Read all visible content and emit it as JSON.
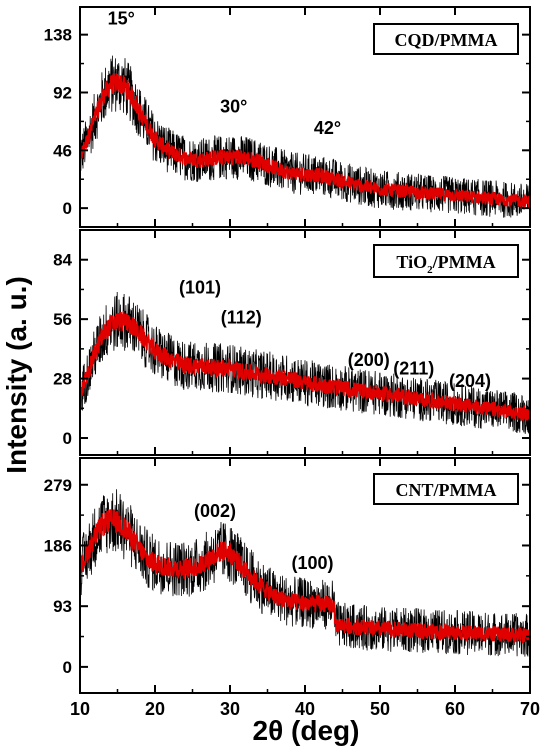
{
  "chart_data": [
    {
      "type": "line",
      "label": "CQD/PMMA",
      "ylim": [
        -15,
        160
      ],
      "yticks": [
        0,
        46,
        92,
        138
      ],
      "series": [
        {
          "name": "CQD/PMMA",
          "color": "#e00000",
          "noise_color": "#000000",
          "x": [
            10,
            11,
            12,
            13,
            14,
            15,
            16,
            17,
            18,
            19,
            20,
            22,
            24,
            26,
            28,
            30,
            32,
            34,
            36,
            38,
            40,
            42,
            44,
            46,
            48,
            50,
            52,
            54,
            56,
            58,
            60,
            62,
            64,
            66,
            68,
            70
          ],
          "y": [
            40,
            55,
            72,
            88,
            98,
            100,
            97,
            88,
            76,
            65,
            55,
            45,
            40,
            38,
            40,
            41,
            40,
            37,
            32,
            28,
            27,
            26,
            23,
            20,
            17,
            15,
            14,
            13,
            12,
            11,
            10,
            9,
            8,
            7,
            6,
            5
          ]
        }
      ],
      "annotations": [
        {
          "text": "15°",
          "x": 15.5,
          "y": 146
        },
        {
          "text": "30°",
          "x": 30.5,
          "y": 76
        },
        {
          "text": "42°",
          "x": 43,
          "y": 59
        }
      ]
    },
    {
      "type": "line",
      "label": "TiO2/PMMA",
      "ylim": [
        -8,
        98
      ],
      "yticks": [
        0,
        28,
        56,
        84
      ],
      "series": [
        {
          "name": "TiO2/PMMA",
          "color": "#e00000",
          "noise_color": "#000000",
          "x": [
            10,
            11,
            12,
            13,
            14,
            15,
            16,
            17,
            18,
            19,
            20,
            22,
            24,
            26,
            28,
            30,
            32,
            34,
            36,
            38,
            40,
            42,
            44,
            46,
            48,
            50,
            52,
            54,
            56,
            58,
            60,
            62,
            64,
            66,
            68,
            70
          ],
          "y": [
            20,
            30,
            40,
            48,
            53,
            55,
            55,
            53,
            49,
            45,
            41,
            37,
            34,
            34,
            33,
            33,
            31,
            30,
            29,
            28,
            26,
            25,
            24,
            23,
            22,
            21,
            20,
            19,
            18,
            17,
            16,
            15,
            14,
            13,
            12,
            11
          ]
        }
      ],
      "annotations": [
        {
          "text": "(101)",
          "x": 26,
          "y": 68
        },
        {
          "text": "(112)",
          "x": 31.5,
          "y": 54
        },
        {
          "text": "(200)",
          "x": 48.5,
          "y": 34
        },
        {
          "text": "(211)",
          "x": 54.5,
          "y": 30
        },
        {
          "text": "(204)",
          "x": 62,
          "y": 24
        }
      ]
    },
    {
      "type": "line",
      "label": "CNT/PMMA",
      "ylim": [
        -40,
        320
      ],
      "yticks": [
        0,
        93,
        186,
        279
      ],
      "series": [
        {
          "name": "CNT/PMMA",
          "color": "#e00000",
          "noise_color": "#000000",
          "x": [
            10,
            11,
            12,
            13,
            14,
            15,
            16,
            17,
            18,
            19,
            20,
            22,
            24,
            26,
            28,
            29,
            30,
            31,
            32,
            34,
            36,
            38,
            40,
            42,
            43.9,
            44,
            46,
            48,
            50,
            52,
            54,
            56,
            58,
            60,
            62,
            64,
            66,
            68,
            70
          ],
          "y": [
            150,
            175,
            200,
            218,
            225,
            222,
            212,
            197,
            180,
            165,
            158,
            152,
            150,
            155,
            172,
            178,
            175,
            162,
            148,
            125,
            108,
            100,
            98,
            96,
            95,
            65,
            62,
            60,
            58,
            57,
            56,
            55,
            54,
            53,
            52,
            51,
            50,
            49,
            48
          ]
        }
      ],
      "annotations": [
        {
          "text": "(002)",
          "x": 28,
          "y": 230
        },
        {
          "text": "(100)",
          "x": 41,
          "y": 150
        }
      ]
    }
  ],
  "x_axis": {
    "label": "2θ (deg)",
    "xlim": [
      10,
      70
    ],
    "ticks": [
      10,
      20,
      30,
      40,
      50,
      60,
      70
    ]
  },
  "y_axis": {
    "label": "Intensity (a. u.)"
  },
  "legend_labels": {
    "cqd": "CQD/PMMA",
    "tio2_prefix": "TiO",
    "tio2_sub": "2",
    "tio2_suffix": "/PMMA",
    "cnt": "CNT/PMMA"
  }
}
